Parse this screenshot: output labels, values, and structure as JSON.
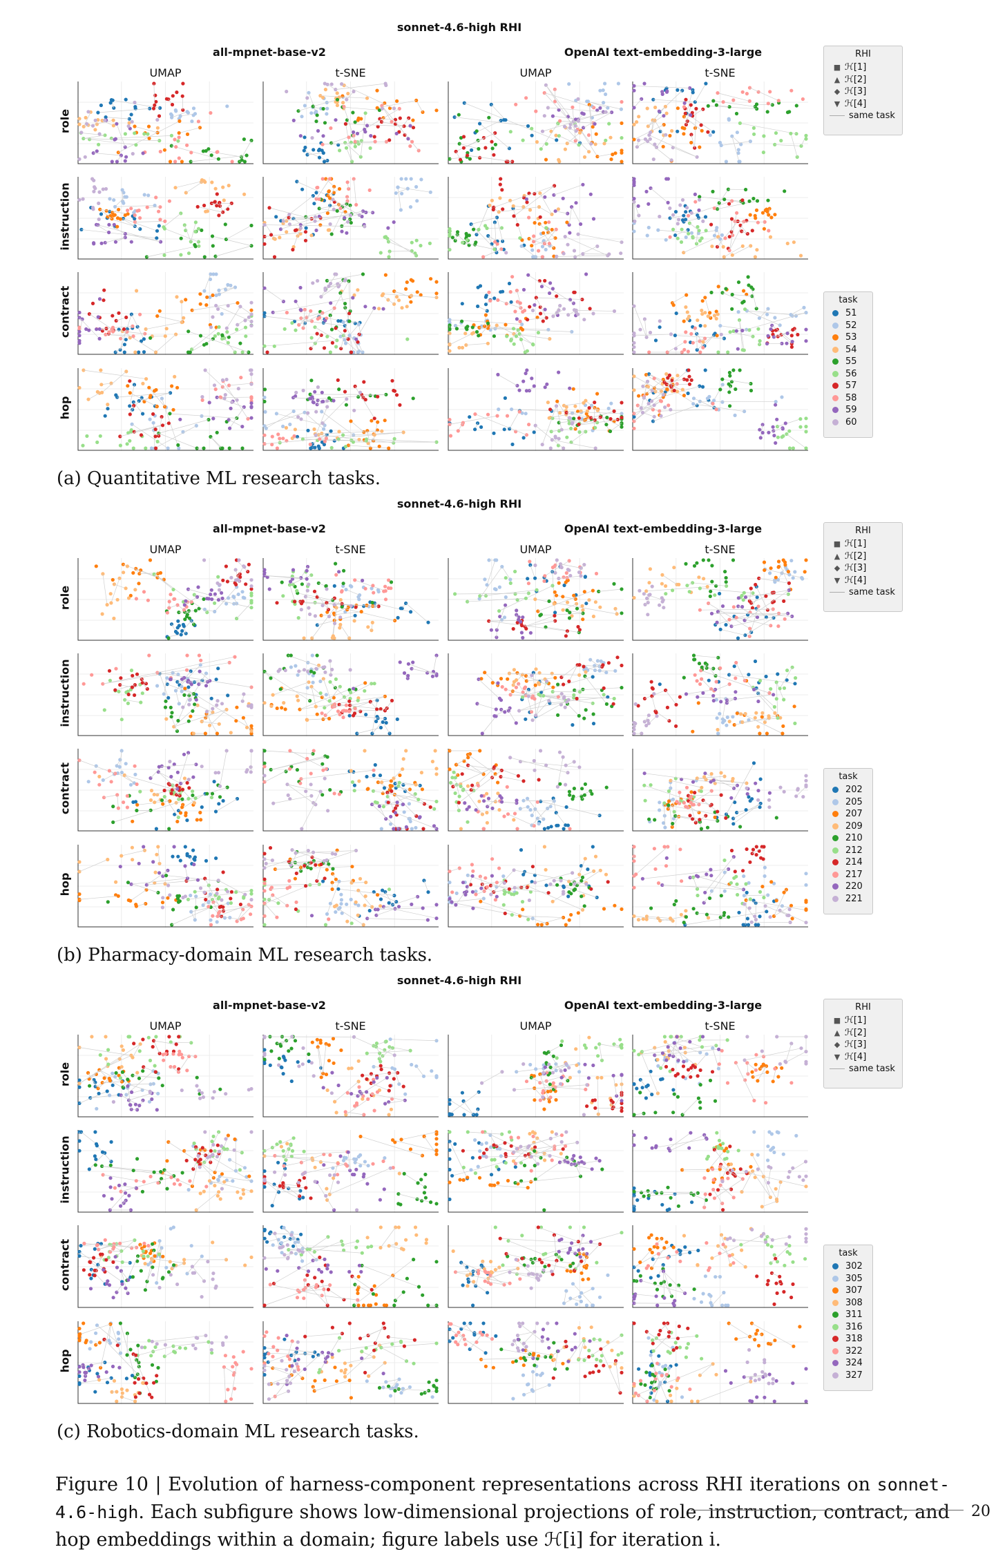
{
  "suptitle": "sonnet-4.6-high RHI",
  "group_titles": [
    "all-mpnet-base-v2",
    "OpenAI text-embedding-3-large"
  ],
  "column_titles": [
    "UMAP",
    "t-SNE",
    "UMAP",
    "t-SNE"
  ],
  "row_labels": [
    "role",
    "instruction",
    "contract",
    "hop"
  ],
  "rhi_legend": {
    "title": "RHI",
    "items": [
      {
        "symbol": "■",
        "label": "ℋ[1]"
      },
      {
        "symbol": "▲",
        "label": "ℋ[2]"
      },
      {
        "symbol": "◆",
        "label": "ℋ[3]"
      },
      {
        "symbol": "▼",
        "label": "ℋ[4]"
      }
    ],
    "line_label": "same task"
  },
  "task_legend_title": "task",
  "palette": [
    "#1f77b4",
    "#aec7e8",
    "#ff7f0e",
    "#ffbb78",
    "#2ca02c",
    "#98df8a",
    "#d62728",
    "#ff9896",
    "#9467bd",
    "#c5b0d5"
  ],
  "subfigures": [
    {
      "caption": "(a) Quantitative ML research tasks.",
      "tasks": [
        "51",
        "52",
        "53",
        "54",
        "55",
        "56",
        "57",
        "58",
        "59",
        "60"
      ]
    },
    {
      "caption": "(b) Pharmacy-domain ML research tasks.",
      "tasks": [
        "202",
        "205",
        "207",
        "209",
        "210",
        "212",
        "214",
        "217",
        "220",
        "221"
      ]
    },
    {
      "caption": "(c) Robotics-domain ML research tasks.",
      "tasks": [
        "302",
        "305",
        "307",
        "308",
        "311",
        "316",
        "318",
        "322",
        "324",
        "327"
      ]
    }
  ],
  "figure_caption": {
    "part1": "Figure 10 | Evolution of harness-component representations across RHI iterations on ",
    "model": "sonnet-4.6-high",
    "part2": ". Each subfigure shows low-dimensional projections of role, instruction, contract, and hop embeddings within a domain; figure labels use ℋ[i] for iteration i."
  },
  "page_number": "20"
}
